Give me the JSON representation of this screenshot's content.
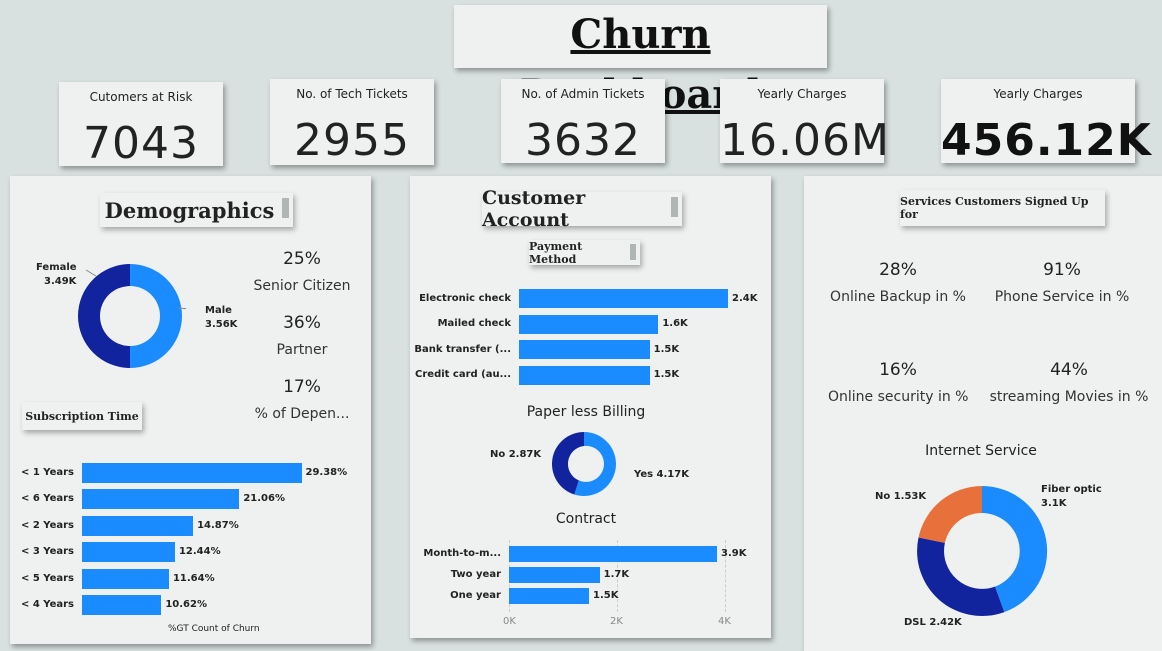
{
  "header": {
    "title": "Churn Dashboard"
  },
  "kpis": [
    {
      "label": "Cutomers at Risk",
      "value": "7043"
    },
    {
      "label": "No. of Tech Tickets",
      "value": "2955"
    },
    {
      "label": "No. of Admin Tickets",
      "value": "3632"
    },
    {
      "label": "Yearly Charges",
      "value": "16.06M"
    },
    {
      "label": "Yearly Charges",
      "value": "456.12K"
    }
  ],
  "demographics": {
    "title": "Demographics",
    "gender_chart": {
      "female_label": "Female",
      "female_value": "3.49K",
      "male_label": "Male",
      "male_value": "3.56K"
    },
    "stats": [
      {
        "pct": "25%",
        "label": "Senior Citizen"
      },
      {
        "pct": "36%",
        "label": "Partner"
      },
      {
        "pct": "17%",
        "label": "% of Depen..."
      }
    ],
    "subscription_title": "Subscription Time",
    "subscription_footer": "%GT Count of Churn"
  },
  "customer_account": {
    "title": "Customer Account",
    "payment_title": "Payment Method",
    "paperless_title": "Paper less Billing",
    "paperless_no": "No 2.87K",
    "paperless_yes": "Yes 4.17K",
    "contract_title": "Contract",
    "contract_axis": [
      "0K",
      "2K",
      "4K"
    ]
  },
  "services": {
    "title": "Services Customers Signed Up for",
    "stats": [
      {
        "pct": "28%",
        "label": "Online Backup in %"
      },
      {
        "pct": "91%",
        "label": "Phone Service in %"
      },
      {
        "pct": "16%",
        "label": "Online security in %"
      },
      {
        "pct": "44%",
        "label": "streaming Movies in %"
      }
    ],
    "internet_title": "Internet Service",
    "internet_fiber_label": "Fiber optic",
    "internet_fiber_value": "3.1K",
    "internet_no": "No 1.53K",
    "internet_dsl": "DSL 2.42K"
  },
  "colors": {
    "primary": "#1b8cff",
    "dark": "#12239e",
    "orange": "#e8703a"
  },
  "chart_data": [
    {
      "type": "pie",
      "categories": [
        "Female",
        "Male"
      ],
      "values": [
        3.49,
        3.56
      ]
    },
    {
      "type": "bar",
      "categories": [
        "< 1 Years",
        "< 6 Years",
        "< 2 Years",
        "< 3 Years",
        "< 5 Years",
        "< 4 Years"
      ],
      "values": [
        29.38,
        21.06,
        14.87,
        12.44,
        11.64,
        10.62
      ],
      "data_labels": [
        "29.38%",
        "21.06%",
        "14.87%",
        "12.44%",
        "11.64%",
        "10.62%"
      ],
      "xlabel": "%GT Count of Churn"
    },
    {
      "type": "bar",
      "categories": [
        "Electronic check",
        "Mailed check",
        "Bank transfer (...",
        "Credit card (au..."
      ],
      "values": [
        2.4,
        1.6,
        1.5,
        1.5
      ],
      "data_labels": [
        "2.4K",
        "1.6K",
        "1.5K",
        "1.5K"
      ]
    },
    {
      "type": "pie",
      "title": "Paper less Billing",
      "categories": [
        "No",
        "Yes"
      ],
      "values": [
        2.87,
        4.17
      ]
    },
    {
      "type": "bar",
      "title": "Contract",
      "categories": [
        "Month-to-m...",
        "Two year",
        "One year"
      ],
      "values": [
        3.9,
        1.7,
        1.5
      ],
      "data_labels": [
        "3.9K",
        "1.7K",
        "1.5K"
      ],
      "xlim": [
        0,
        4.2
      ]
    },
    {
      "type": "pie",
      "title": "Internet Service",
      "categories": [
        "Fiber optic",
        "DSL",
        "No"
      ],
      "values": [
        3.1,
        2.42,
        1.53
      ]
    }
  ]
}
